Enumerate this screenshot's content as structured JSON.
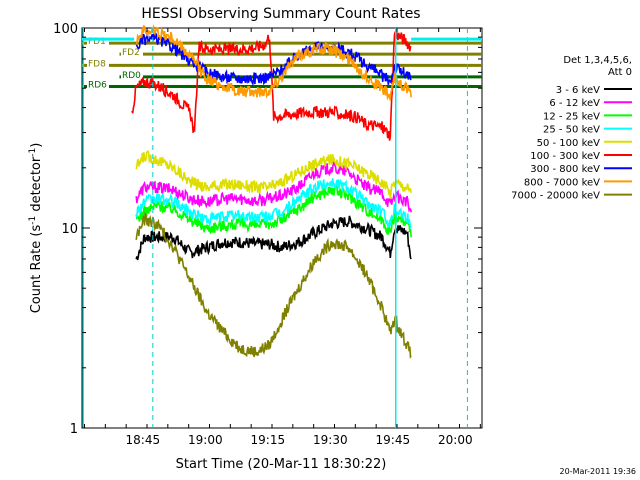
{
  "chart_data": {
    "type": "line",
    "title": "HESSI Observing Summary Count Rates",
    "xlabel": "Start Time (20-Mar-11 18:30:22)",
    "ylabel_parts": [
      "Count Rate (s",
      "-1",
      " detector",
      "-1",
      ")"
    ],
    "yscale": "log",
    "ylim": [
      1,
      100
    ],
    "xlim_minutes": [
      0,
      96
    ],
    "x_ticks": [
      {
        "label": "18:45",
        "t": 14.6
      },
      {
        "label": "19:00",
        "t": 29.6
      },
      {
        "label": "19:15",
        "t": 44.6
      },
      {
        "label": "19:30",
        "t": 59.6
      },
      {
        "label": "19:45",
        "t": 74.6
      },
      {
        "label": "20:00",
        "t": 89.6
      }
    ],
    "y_ticks": [
      {
        "label": "1",
        "v": 1
      },
      {
        "label": "10",
        "v": 10
      },
      {
        "label": "100",
        "v": 100
      }
    ],
    "legend_header": [
      "Det 1,3,4,5,6,",
      "Att 0"
    ],
    "series": [
      {
        "name": "3 - 6 keV",
        "color": "#000000",
        "points": [
          [
            13,
            7
          ],
          [
            15,
            9
          ],
          [
            18,
            9
          ],
          [
            22,
            9
          ],
          [
            26,
            7.5
          ],
          [
            30,
            8
          ],
          [
            34,
            8.5
          ],
          [
            38,
            8.5
          ],
          [
            42,
            8.3
          ],
          [
            45,
            8.3
          ],
          [
            48,
            8
          ],
          [
            52,
            8.5
          ],
          [
            56,
            9.5
          ],
          [
            60,
            10.5
          ],
          [
            64,
            10.8
          ],
          [
            68,
            10
          ],
          [
            72,
            9
          ],
          [
            74,
            7.5
          ],
          [
            75,
            10
          ],
          [
            78,
            9.5
          ],
          [
            79,
            7
          ]
        ]
      },
      {
        "name": "6 - 12 keV",
        "color": "#ff00ff",
        "points": [
          [
            13,
            14
          ],
          [
            15,
            16
          ],
          [
            18,
            16
          ],
          [
            22,
            15.5
          ],
          [
            26,
            14
          ],
          [
            30,
            13.5
          ],
          [
            34,
            14
          ],
          [
            38,
            14
          ],
          [
            42,
            13.6
          ],
          [
            45,
            14
          ],
          [
            48,
            14.5
          ],
          [
            52,
            16
          ],
          [
            56,
            19
          ],
          [
            60,
            20
          ],
          [
            64,
            19
          ],
          [
            68,
            16
          ],
          [
            72,
            15
          ],
          [
            74,
            13
          ],
          [
            75,
            14.5
          ],
          [
            78,
            13.5
          ],
          [
            79,
            12
          ]
        ]
      },
      {
        "name": "12 - 25 keV",
        "color": "#00ff00",
        "points": [
          [
            13,
            11
          ],
          [
            15,
            12
          ],
          [
            18,
            13
          ],
          [
            22,
            12.5
          ],
          [
            26,
            11
          ],
          [
            30,
            10
          ],
          [
            34,
            10.3
          ],
          [
            38,
            10.5
          ],
          [
            42,
            10.3
          ],
          [
            45,
            10.5
          ],
          [
            48,
            11
          ],
          [
            52,
            12.5
          ],
          [
            56,
            14.5
          ],
          [
            60,
            15.5
          ],
          [
            64,
            14.5
          ],
          [
            68,
            12.5
          ],
          [
            72,
            11
          ],
          [
            74,
            9.5
          ],
          [
            75,
            11.5
          ],
          [
            78,
            10.5
          ],
          [
            79,
            9
          ]
        ]
      },
      {
        "name": "25 - 50 keV",
        "color": "#00ffff",
        "points": [
          [
            13,
            12
          ],
          [
            15,
            13.5
          ],
          [
            18,
            14
          ],
          [
            22,
            13.5
          ],
          [
            26,
            12
          ],
          [
            30,
            11
          ],
          [
            34,
            11.5
          ],
          [
            38,
            11.5
          ],
          [
            42,
            11.3
          ],
          [
            45,
            11.5
          ],
          [
            48,
            12
          ],
          [
            52,
            14
          ],
          [
            56,
            16
          ],
          [
            60,
            17
          ],
          [
            64,
            16
          ],
          [
            68,
            13.5
          ],
          [
            72,
            12
          ],
          [
            74,
            10.5
          ],
          [
            75,
            12.5
          ],
          [
            78,
            11.5
          ],
          [
            79,
            10
          ]
        ]
      },
      {
        "name": "50 - 100 keV",
        "color": "#dddd00",
        "points": [
          [
            13,
            20
          ],
          [
            15,
            23
          ],
          [
            18,
            22
          ],
          [
            22,
            20
          ],
          [
            26,
            17
          ],
          [
            30,
            16
          ],
          [
            34,
            16.5
          ],
          [
            38,
            16.5
          ],
          [
            42,
            16
          ],
          [
            45,
            16
          ],
          [
            48,
            17
          ],
          [
            52,
            19
          ],
          [
            56,
            21
          ],
          [
            60,
            22
          ],
          [
            64,
            21
          ],
          [
            68,
            19
          ],
          [
            72,
            17
          ],
          [
            74,
            15
          ],
          [
            75,
            17
          ],
          [
            78,
            16
          ],
          [
            79,
            15
          ]
        ]
      },
      {
        "name": "100 - 300 keV",
        "color": "#ff0000",
        "points": [
          [
            12,
            38
          ],
          [
            13,
            50
          ],
          [
            15,
            54
          ],
          [
            18,
            52
          ],
          [
            22,
            46
          ],
          [
            26,
            38
          ],
          [
            27,
            29
          ],
          [
            28,
            80
          ],
          [
            32,
            78
          ],
          [
            36,
            78
          ],
          [
            40,
            79
          ],
          [
            42,
            80
          ],
          [
            44,
            83
          ],
          [
            45,
            92
          ],
          [
            46,
            36
          ],
          [
            50,
            37
          ],
          [
            54,
            38
          ],
          [
            58,
            38
          ],
          [
            60,
            38
          ],
          [
            62,
            37
          ],
          [
            66,
            36
          ],
          [
            68,
            33
          ],
          [
            72,
            32
          ],
          [
            74,
            29
          ],
          [
            75,
            95
          ],
          [
            78,
            85
          ],
          [
            79,
            80
          ]
        ]
      },
      {
        "name": "300 - 800 keV",
        "color": "#0000ff",
        "points": [
          [
            13,
            80
          ],
          [
            15,
            88
          ],
          [
            18,
            88
          ],
          [
            22,
            80
          ],
          [
            26,
            68
          ],
          [
            30,
            60
          ],
          [
            34,
            57
          ],
          [
            38,
            56
          ],
          [
            42,
            56
          ],
          [
            45,
            57
          ],
          [
            48,
            62
          ],
          [
            52,
            74
          ],
          [
            56,
            80
          ],
          [
            60,
            80
          ],
          [
            64,
            76
          ],
          [
            68,
            66
          ],
          [
            72,
            58
          ],
          [
            74,
            54
          ],
          [
            75,
            64
          ],
          [
            78,
            58
          ],
          [
            79,
            55
          ]
        ]
      },
      {
        "name": "800 - 7000 keV",
        "color": "#ff9900",
        "points": [
          [
            13,
            88
          ],
          [
            15,
            97
          ],
          [
            18,
            96
          ],
          [
            22,
            88
          ],
          [
            26,
            72
          ],
          [
            30,
            56
          ],
          [
            34,
            51
          ],
          [
            38,
            48
          ],
          [
            42,
            48
          ],
          [
            45,
            49
          ],
          [
            48,
            58
          ],
          [
            52,
            73
          ],
          [
            56,
            79
          ],
          [
            60,
            78
          ],
          [
            64,
            70
          ],
          [
            68,
            58
          ],
          [
            72,
            50
          ],
          [
            74,
            45
          ],
          [
            75,
            56
          ],
          [
            78,
            50
          ],
          [
            79,
            45
          ]
        ]
      },
      {
        "name": "7000 - 20000 keV",
        "color": "#808000",
        "points": [
          [
            13,
            9
          ],
          [
            15,
            11
          ],
          [
            18,
            10.5
          ],
          [
            22,
            8
          ],
          [
            26,
            5.5
          ],
          [
            30,
            3.8
          ],
          [
            34,
            3
          ],
          [
            38,
            2.5
          ],
          [
            42,
            2.4
          ],
          [
            45,
            2.6
          ],
          [
            48,
            3.5
          ],
          [
            52,
            5
          ],
          [
            56,
            7
          ],
          [
            60,
            8.5
          ],
          [
            64,
            8
          ],
          [
            68,
            6
          ],
          [
            72,
            4
          ],
          [
            74,
            3
          ],
          [
            75,
            3.5
          ],
          [
            78,
            2.6
          ],
          [
            79,
            2.3
          ]
        ]
      }
    ],
    "flag_lines": [
      {
        "label": "FD1",
        "color": "#808000",
        "t0": 0,
        "t1": 96,
        "v": 84
      },
      {
        "label": "FD2",
        "color": "#808000",
        "t0": 9,
        "t1": 96,
        "v": 74
      },
      {
        "label": "FD8",
        "color": "#808000",
        "t0": 0,
        "t1": 96,
        "v": 65
      },
      {
        "label": "RD0",
        "color": "#006600",
        "t0": 9,
        "t1": 96,
        "v": 57
      },
      {
        "label": "RD6",
        "color": "#006600",
        "t0": 0,
        "t1": 96,
        "v": 51
      }
    ],
    "timestamp": "20-Mar-2011 19:36"
  },
  "colors": {
    "cyan_solid": "#00eeee",
    "cyan_dashed": "#00cccc",
    "olive": "#808000",
    "dark_green": "#006600"
  }
}
